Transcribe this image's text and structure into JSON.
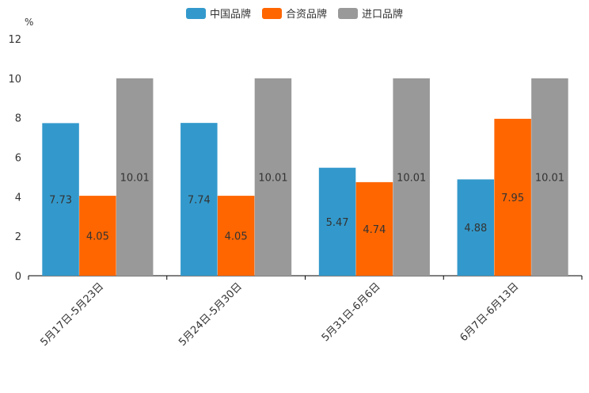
{
  "chart_data": {
    "type": "bar",
    "unit": "%",
    "categories": [
      "5月17日-5月23日",
      "5月24日-5月30日",
      "5月31日-6月6日",
      "6月7日-6月13日"
    ],
    "series": [
      {
        "name": "中国品牌",
        "color": "#3399cc",
        "values": [
          7.73,
          7.74,
          5.47,
          4.88
        ]
      },
      {
        "name": "合资品牌",
        "color": "#ff6600",
        "values": [
          4.05,
          4.05,
          4.74,
          7.95
        ]
      },
      {
        "name": "进口品牌",
        "color": "#999999",
        "values": [
          10.01,
          10.01,
          10.01,
          10.01
        ]
      }
    ],
    "ylim": [
      0,
      12
    ],
    "yticks": [
      0,
      2,
      4,
      6,
      8,
      10,
      12
    ],
    "legend_position": "top-center"
  }
}
